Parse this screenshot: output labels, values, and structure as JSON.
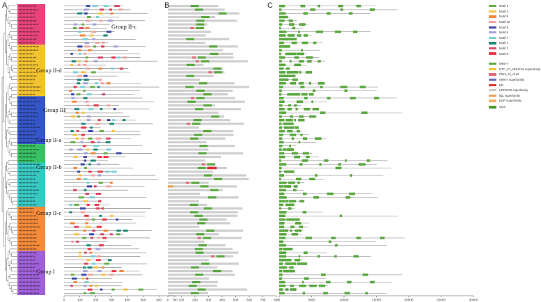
{
  "panels": {
    "a_letter": "A",
    "b_letter": "B",
    "c_letter": "C"
  },
  "groups": [
    {
      "id": "g2c_top",
      "label": "Group II-c"
    },
    {
      "id": "g2d",
      "label": "Group II-d"
    },
    {
      "id": "g3",
      "label": "Group III"
    },
    {
      "id": "g2a",
      "label": "Group II-a"
    },
    {
      "id": "g2b",
      "label": "Group II-b"
    },
    {
      "id": "g2c_bot",
      "label": "Group II-c"
    },
    {
      "id": "g1",
      "label": "Group I"
    }
  ],
  "row_count": 79,
  "group_colors": {
    "g2c_top": "#e8447b",
    "g2d": "#f2c230",
    "g3": "#3456c8",
    "g2a": "#38c062",
    "g2b": "#38c8c4",
    "g2c_bot": "#f48a3a",
    "g1": "#a060d8"
  },
  "axis_a": {
    "ticks": [
      "0",
      "100",
      "200",
      "300",
      "400",
      "500",
      "600",
      "700"
    ]
  },
  "axis_b": {
    "ticks": [
      "0",
      "100",
      "200",
      "300",
      "400",
      "500",
      "600",
      "700",
      "800"
    ]
  },
  "axis_c": {
    "ticks": [
      "0",
      "5000",
      "10000",
      "15000",
      "20000",
      "25000",
      "30000"
    ]
  },
  "motif_legend": [
    {
      "label": "Motif 1",
      "color": "#6ab04c"
    },
    {
      "label": "Motif 2",
      "color": "#f6c343"
    },
    {
      "label": "Motif 8",
      "color": "#f08a3e"
    },
    {
      "label": "Motif 10",
      "color": "#f4a6a0"
    },
    {
      "label": "Motif 9",
      "color": "#3b4ba6"
    },
    {
      "label": "Motif 6",
      "color": "#a4a4d8"
    },
    {
      "label": "Motif 7",
      "color": "#7fd0d8"
    },
    {
      "label": "Motif 4",
      "color": "#1f8a7a"
    },
    {
      "label": "Motif 3",
      "color": "#d94a6a"
    },
    {
      "label": "Motif 5",
      "color": "#e83b4b"
    }
  ],
  "domain_legend": [
    {
      "label": "WRKY",
      "color": "#5aa840"
    },
    {
      "label": "ETC_C1_NDUFA5 superfamily",
      "color": "#f0c030"
    },
    {
      "label": "Plant_zn_clust",
      "color": "#e06a7a"
    },
    {
      "label": "WRKY superfamily",
      "color": "#6a6ab8"
    },
    {
      "label": "ER",
      "color": "#e03030"
    },
    {
      "label": "UPF0242 superfamily",
      "color": "#c8c8c8"
    },
    {
      "label": "flgL superfamily",
      "color": "#e8a050"
    },
    {
      "label": "bZIP superfamily",
      "color": "#f0b060"
    }
  ],
  "cds_legend": {
    "label": "CDS",
    "color": "#4a9a2a"
  }
}
